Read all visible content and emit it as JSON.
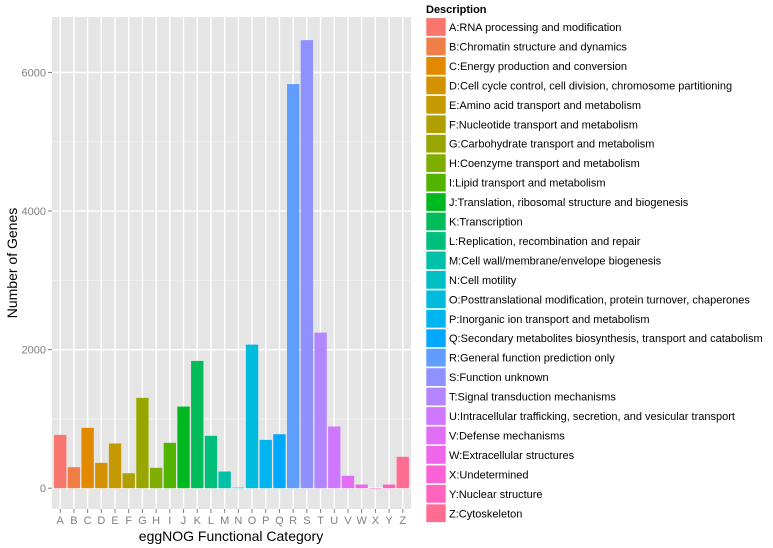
{
  "chart_data": {
    "type": "bar",
    "title": "",
    "xlabel": "eggNOG Functional Category",
    "ylabel": "Number of Genes",
    "ylim": [
      -300,
      6800
    ],
    "yticks": [
      0,
      2000,
      4000,
      6000
    ],
    "grid": true,
    "legend_title": "Description",
    "legend_position": "right",
    "categories": [
      "A",
      "B",
      "C",
      "D",
      "E",
      "F",
      "G",
      "H",
      "I",
      "J",
      "K",
      "L",
      "M",
      "N",
      "O",
      "P",
      "Q",
      "R",
      "S",
      "T",
      "U",
      "V",
      "W",
      "X",
      "Y",
      "Z"
    ],
    "values": [
      770,
      303,
      871,
      366,
      645,
      216,
      1304,
      294,
      655,
      1178,
      1837,
      756,
      241,
      8,
      2072,
      697,
      779,
      5832,
      6466,
      2245,
      890,
      179,
      53,
      3,
      53,
      453
    ],
    "colors": [
      "#F8766D",
      "#EF7F46",
      "#E38900",
      "#D49200",
      "#C49A00",
      "#B09F00",
      "#9AA600",
      "#7FAE00",
      "#53B400",
      "#00B81F",
      "#00BC59",
      "#00BF7D",
      "#00C1A7",
      "#00BFC4",
      "#00BBDB",
      "#00B4EF",
      "#00A9FF",
      "#619CFF",
      "#8F91FF",
      "#B385FF",
      "#CF78FF",
      "#E36EF6",
      "#F066EA",
      "#FB61D7",
      "#FF63BE",
      "#FF6C91"
    ],
    "legend_entries": [
      "A:RNA processing and modification",
      "B:Chromatin structure and dynamics",
      "C:Energy production and conversion",
      "D:Cell cycle control, cell division, chromosome partitioning",
      "E:Amino acid transport and metabolism",
      "F:Nucleotide transport and metabolism",
      "G:Carbohydrate transport and metabolism",
      "H:Coenzyme transport and metabolism",
      "I:Lipid transport and metabolism",
      "J:Translation, ribosomal structure and biogenesis",
      "K:Transcription",
      "L:Replication, recombination and repair",
      "M:Cell wall/membrane/envelope biogenesis",
      "N:Cell motility",
      "O:Posttranslational modification, protein turnover, chaperones",
      "P:Inorganic ion transport and metabolism",
      "Q:Secondary metabolites biosynthesis, transport and catabolism",
      "R:General function prediction only",
      "S:Function unknown",
      "T:Signal transduction mechanisms",
      "U:Intracellular trafficking, secretion, and vesicular transport",
      "V:Defense mechanisms",
      "W:Extracellular structures",
      "X:Undetermined",
      "Y:Nuclear structure",
      "Z:Cytoskeleton"
    ]
  },
  "style": {
    "panel_background": "#E5E5E5",
    "grid_color": "#FFFFFF",
    "tick_color": "#7F7F7F"
  }
}
